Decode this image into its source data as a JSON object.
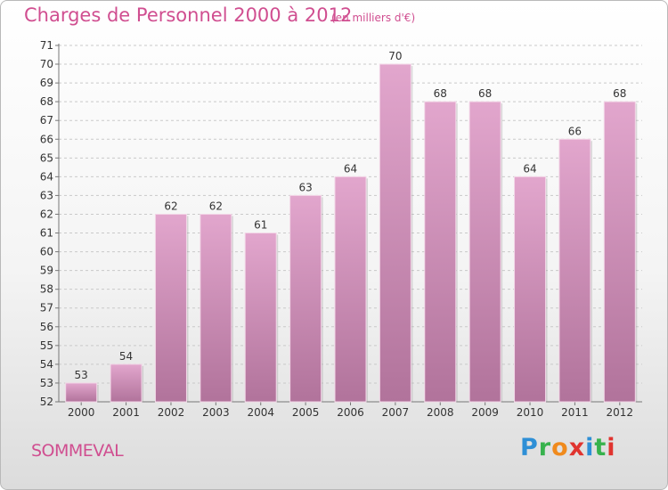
{
  "header": {
    "title": "Charges de Personnel 2000 à 2012",
    "unit_note": "(en milliers d'€)"
  },
  "footer": {
    "commune": "SOMMEVAL",
    "brand": [
      "P",
      "r",
      "o",
      "x",
      "i",
      "t",
      "i"
    ]
  },
  "colors": {
    "bar_top": "#e2a6cd",
    "bar_bottom": "#b1739b",
    "title": "#d04e90"
  },
  "chart_data": {
    "type": "bar",
    "title": "Charges de Personnel 2000 à 2012",
    "subtitle": "(en milliers d'€)",
    "categories": [
      "2000",
      "2001",
      "2002",
      "2003",
      "2004",
      "2005",
      "2006",
      "2007",
      "2008",
      "2009",
      "2010",
      "2011",
      "2012"
    ],
    "values": [
      53,
      54,
      62,
      62,
      61,
      63,
      64,
      70,
      68,
      68,
      64,
      66,
      68
    ],
    "ylim": [
      52,
      71
    ],
    "yticks": [
      52,
      53,
      54,
      55,
      56,
      57,
      58,
      59,
      60,
      61,
      62,
      63,
      64,
      65,
      66,
      67,
      68,
      69,
      70,
      71
    ],
    "grid": true,
    "legend": "none"
  }
}
